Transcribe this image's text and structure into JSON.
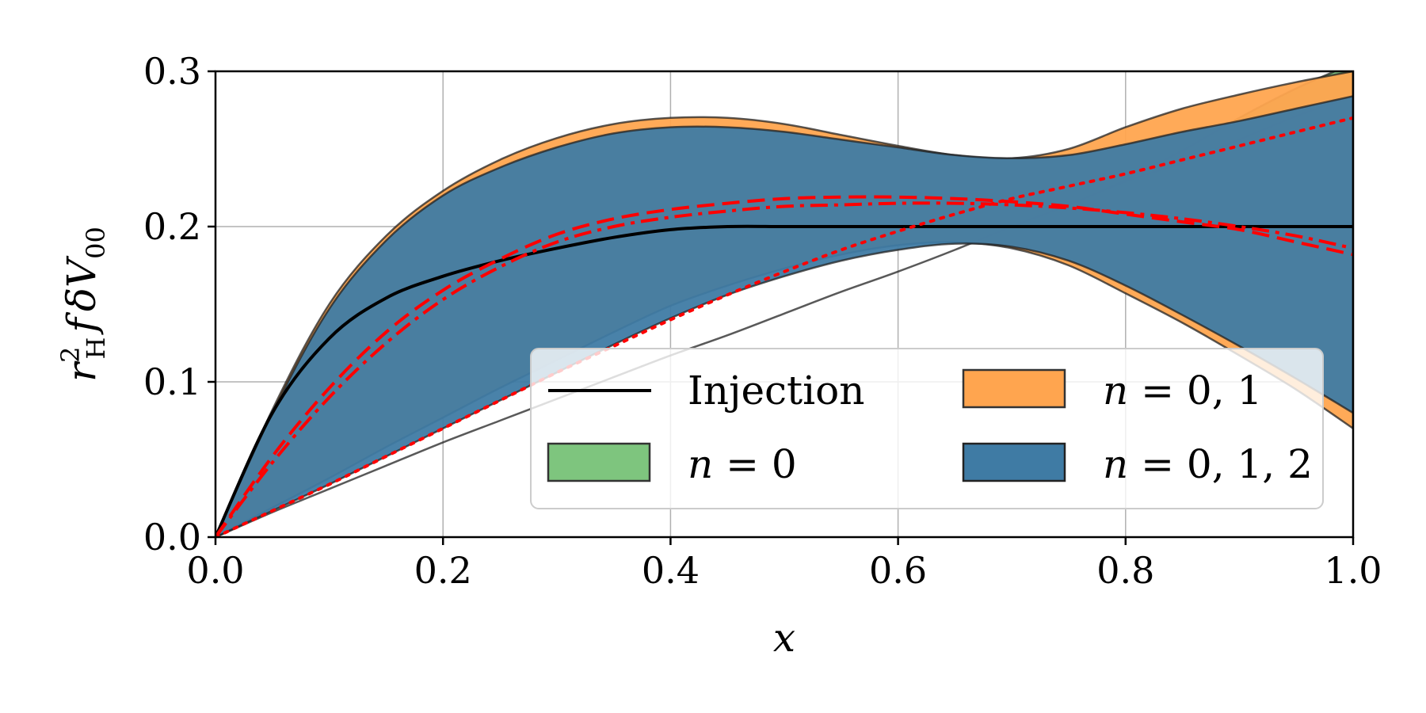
{
  "chart_data": {
    "type": "area",
    "xlabel": "x",
    "ylabel": "r_H^2 f δV_00",
    "ylabel_parts": {
      "r": "r",
      "sup": "2",
      "sub": "H",
      "f": "f",
      "delta": "δ",
      "V": "V",
      "v_sub": "00"
    },
    "xlim": [
      0.0,
      1.0
    ],
    "ylim": [
      0.0,
      0.3
    ],
    "grid": true,
    "x_ticks": [
      0.0,
      0.2,
      0.4,
      0.6,
      0.8,
      1.0
    ],
    "y_ticks": [
      0.0,
      0.1,
      0.2,
      0.3
    ],
    "x_tick_labels": [
      "0.0",
      "0.2",
      "0.4",
      "0.6",
      "0.8",
      "1.0"
    ],
    "y_tick_labels": [
      "0.0",
      "0.1",
      "0.2",
      "0.3"
    ],
    "x": [
      0.0,
      0.05,
      0.1,
      0.15,
      0.2,
      0.25,
      0.3,
      0.35,
      0.4,
      0.45,
      0.5,
      0.55,
      0.6,
      0.65,
      0.7,
      0.75,
      0.8,
      0.85,
      0.9,
      0.95,
      1.0
    ],
    "bands": [
      {
        "name": "n = 0",
        "color": "#7ec57e",
        "upper": [
          0.0,
          0.016,
          0.031,
          0.046,
          0.061,
          0.075,
          0.089,
          0.103,
          0.117,
          0.13,
          0.144,
          0.158,
          0.171,
          0.185,
          0.2,
          0.214,
          0.23,
          0.249,
          0.27,
          0.289,
          0.305
        ],
        "lower": [
          0.0,
          0.016,
          0.031,
          0.046,
          0.061,
          0.075,
          0.089,
          0.103,
          0.117,
          0.13,
          0.144,
          0.158,
          0.171,
          0.185,
          0.2,
          0.214,
          0.229,
          0.241,
          0.256,
          0.271,
          0.284
        ]
      },
      {
        "name": "n = 0, 1",
        "color": "#ffa54f",
        "upper": [
          0.0,
          0.082,
          0.15,
          0.194,
          0.223,
          0.243,
          0.257,
          0.266,
          0.27,
          0.27,
          0.266,
          0.259,
          0.252,
          0.246,
          0.244,
          0.25,
          0.264,
          0.276,
          0.285,
          0.293,
          0.3
        ],
        "lower": [
          0.0,
          0.019,
          0.038,
          0.058,
          0.077,
          0.096,
          0.114,
          0.132,
          0.149,
          0.162,
          0.173,
          0.182,
          0.188,
          0.19,
          0.186,
          0.175,
          0.157,
          0.138,
          0.117,
          0.095,
          0.07
        ]
      },
      {
        "name": "n = 0, 1, 2",
        "color": "#3f7ba4",
        "upper": [
          0.0,
          0.08,
          0.147,
          0.191,
          0.22,
          0.238,
          0.251,
          0.26,
          0.264,
          0.264,
          0.261,
          0.256,
          0.251,
          0.246,
          0.244,
          0.246,
          0.253,
          0.261,
          0.268,
          0.276,
          0.284
        ],
        "lower": [
          0.0,
          0.017,
          0.034,
          0.052,
          0.07,
          0.088,
          0.106,
          0.124,
          0.141,
          0.156,
          0.168,
          0.178,
          0.185,
          0.189,
          0.187,
          0.178,
          0.162,
          0.143,
          0.123,
          0.102,
          0.08
        ]
      }
    ],
    "lines": [
      {
        "name": "Injection",
        "color": "#000000",
        "style": "solid",
        "y": [
          0.0,
          0.08,
          0.128,
          0.154,
          0.168,
          0.178,
          0.186,
          0.193,
          0.198,
          0.2,
          0.2,
          0.2,
          0.2,
          0.2,
          0.2,
          0.2,
          0.2,
          0.2,
          0.2,
          0.2,
          0.2
        ]
      },
      {
        "name": "dashed",
        "color": "#ff0000",
        "style": "dashed",
        "y": [
          0.0,
          0.052,
          0.096,
          0.132,
          0.159,
          0.179,
          0.195,
          0.205,
          0.211,
          0.215,
          0.218,
          0.219,
          0.219,
          0.218,
          0.216,
          0.213,
          0.208,
          0.203,
          0.198,
          0.19,
          0.182
        ]
      },
      {
        "name": "dashdot",
        "color": "#ff0000",
        "style": "dashdot",
        "y": [
          0.0,
          0.048,
          0.09,
          0.125,
          0.153,
          0.174,
          0.19,
          0.2,
          0.206,
          0.21,
          0.213,
          0.214,
          0.215,
          0.215,
          0.214,
          0.212,
          0.209,
          0.205,
          0.2,
          0.194,
          0.186
        ]
      },
      {
        "name": "dotted",
        "color": "#ff0000",
        "style": "dotted",
        "y": [
          0.0,
          0.017,
          0.034,
          0.052,
          0.07,
          0.088,
          0.106,
          0.123,
          0.14,
          0.156,
          0.171,
          0.185,
          0.197,
          0.208,
          0.218,
          0.226,
          0.234,
          0.243,
          0.252,
          0.261,
          0.27
        ]
      }
    ],
    "legend": {
      "placement": "lower-right",
      "columns": 2,
      "entries": [
        {
          "label": "Injection",
          "kind": "line",
          "color": "#000000"
        },
        {
          "label_n": "n",
          "label_rest": " = 0, 1",
          "kind": "patch",
          "color": "#ffa54f"
        },
        {
          "label_n": "n",
          "label_rest": " = 0",
          "kind": "patch",
          "color": "#7ec57e"
        },
        {
          "label_n": "n",
          "label_rest": " = 0, 1, 2",
          "kind": "patch",
          "color": "#3f7ba4"
        }
      ]
    }
  }
}
